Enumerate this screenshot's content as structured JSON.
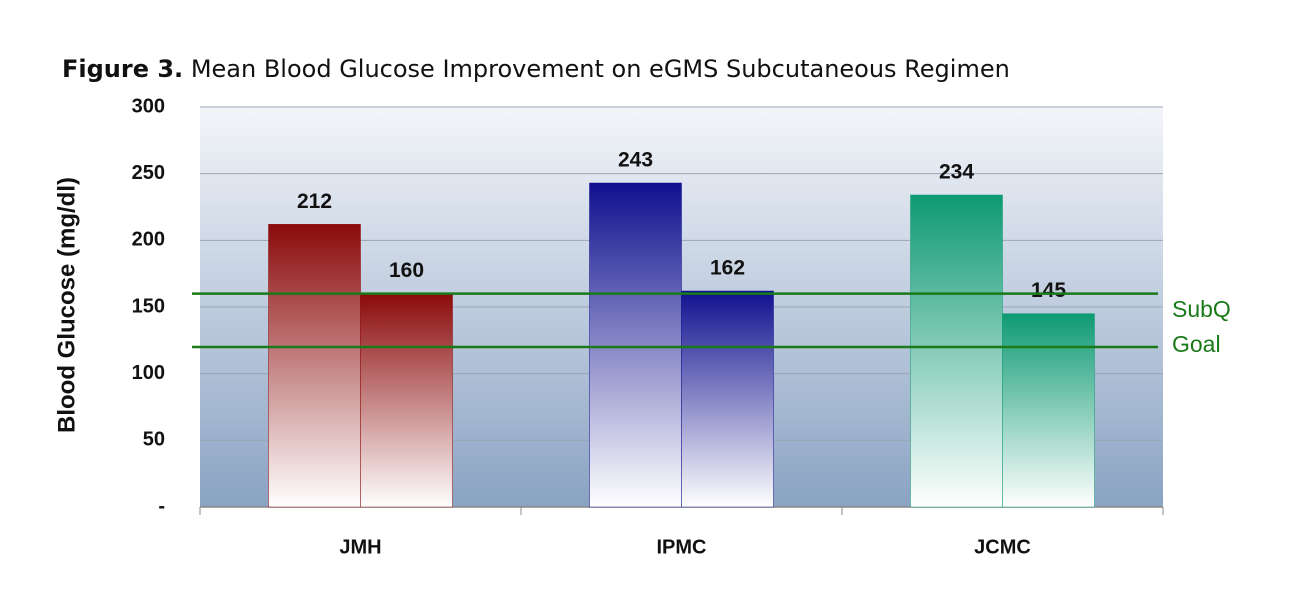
{
  "chart_data": {
    "type": "grouped-bar",
    "title_label": "Figure 3.",
    "title": "Mean Blood Glucose Improvement on eGMS Subcutaneous Regimen",
    "y_label": "Blood Glucose (mg/dl)",
    "categories": [
      "JMH",
      "IPMC",
      "JCMC"
    ],
    "values": [
      [
        212,
        160
      ],
      [
        243,
        162
      ],
      [
        234,
        145
      ]
    ],
    "colors": [
      "#8b0a0a",
      "#10108f",
      "#0e9a72"
    ],
    "ylim": [
      0,
      300
    ],
    "yticks": [
      {
        "value": 0,
        "label": "-"
      },
      50,
      100,
      150,
      200,
      250,
      300
    ],
    "grid": true,
    "goal": {
      "label": [
        "SubQ",
        "Goal"
      ],
      "range": [
        120,
        160
      ],
      "color": "#1a7a1a"
    }
  }
}
